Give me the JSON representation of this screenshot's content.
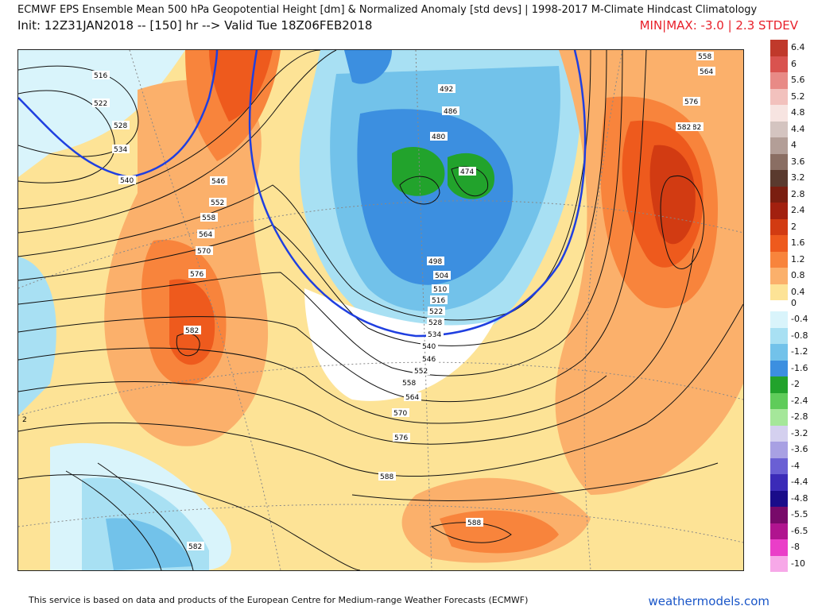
{
  "header": {
    "title": "ECMWF EPS Ensemble Mean 500 hPa Geopotential Height [dm] & Normalized Anomaly [std devs] | 1998-2017 M-Climate Hindcast Climatology",
    "init": "Init: 12Z31JAN2018 -- [150] hr --> Valid Tue 18Z06FEB2018",
    "minmax": "MIN|MAX: -3.0 | 2.3 STDEV"
  },
  "legend_positive": [
    {
      "label": "6.4",
      "color": "#c0392b"
    },
    {
      "label": "6",
      "color": "#d9534f"
    },
    {
      "label": "5.6",
      "color": "#e88a86"
    },
    {
      "label": "5.2",
      "color": "#f2c1bd"
    },
    {
      "label": "4.8",
      "color": "#f7e4e1"
    },
    {
      "label": "4.4",
      "color": "#d4c4c0"
    },
    {
      "label": "4",
      "color": "#b39e97"
    },
    {
      "label": "3.6",
      "color": "#8a6e63"
    },
    {
      "label": "3.2",
      "color": "#5a3a2e"
    },
    {
      "label": "2.8",
      "color": "#7a1e10"
    },
    {
      "label": "2.4",
      "color": "#a2200f"
    },
    {
      "label": "2",
      "color": "#d23b12"
    },
    {
      "label": "1.6",
      "color": "#ee5a1d"
    },
    {
      "label": "1.2",
      "color": "#f8843c"
    },
    {
      "label": "0.8",
      "color": "#fbb06b"
    },
    {
      "label": "0.4",
      "color": "#fde396"
    }
  ],
  "legend_zero": "0",
  "legend_negative": [
    {
      "label": "-0.4",
      "color": "#d9f4fb"
    },
    {
      "label": "-0.8",
      "color": "#a8e0f3"
    },
    {
      "label": "-1.2",
      "color": "#72c2ea"
    },
    {
      "label": "-1.6",
      "color": "#3c8fe0"
    },
    {
      "label": "-2",
      "color": "#22a32c"
    },
    {
      "label": "-2.4",
      "color": "#5fcc5a"
    },
    {
      "label": "-2.8",
      "color": "#a5e79a"
    },
    {
      "label": "-3.2",
      "color": "#d4d0ef"
    },
    {
      "label": "-3.6",
      "color": "#a8a0e3"
    },
    {
      "label": "-4",
      "color": "#6a5fd4"
    },
    {
      "label": "-4.4",
      "color": "#3b2bb8"
    },
    {
      "label": "-4.8",
      "color": "#1a0c8a"
    },
    {
      "label": "-5.5",
      "color": "#780a6a"
    },
    {
      "label": "-6.5",
      "color": "#b0148f"
    },
    {
      "label": "-8",
      "color": "#ea3ec8"
    },
    {
      "label": "-10",
      "color": "#f7a8e8"
    }
  ],
  "contour_labels": [
    {
      "text": "516"
    },
    {
      "text": "522"
    },
    {
      "text": "528"
    },
    {
      "text": "534"
    },
    {
      "text": "540"
    },
    {
      "text": "546"
    },
    {
      "text": "552"
    },
    {
      "text": "558"
    },
    {
      "text": "564"
    },
    {
      "text": "570"
    },
    {
      "text": "576"
    },
    {
      "text": "582"
    },
    {
      "text": "492"
    },
    {
      "text": "486"
    },
    {
      "text": "480"
    },
    {
      "text": "474"
    },
    {
      "text": "498"
    },
    {
      "text": "504"
    },
    {
      "text": "510"
    },
    {
      "text": "516"
    },
    {
      "text": "522"
    },
    {
      "text": "528"
    },
    {
      "text": "534"
    },
    {
      "text": "540"
    },
    {
      "text": "546"
    },
    {
      "text": "552"
    },
    {
      "text": "558"
    },
    {
      "text": "564"
    },
    {
      "text": "570"
    },
    {
      "text": "576"
    },
    {
      "text": "582"
    },
    {
      "text": "588"
    },
    {
      "text": "588"
    },
    {
      "text": "558"
    },
    {
      "text": "564"
    },
    {
      "text": "576"
    },
    {
      "text": "582"
    },
    {
      "text": "582"
    },
    {
      "text": "2"
    }
  ],
  "footer": {
    "attribution": "This service is based on data and products of the European Centre for Medium-range Weather Forecasts (ECMWF)",
    "site": "weathermodels.com"
  },
  "colors": {
    "contour": "#111111",
    "contour_540": "#1f3fe0",
    "graticule": "#888888"
  }
}
